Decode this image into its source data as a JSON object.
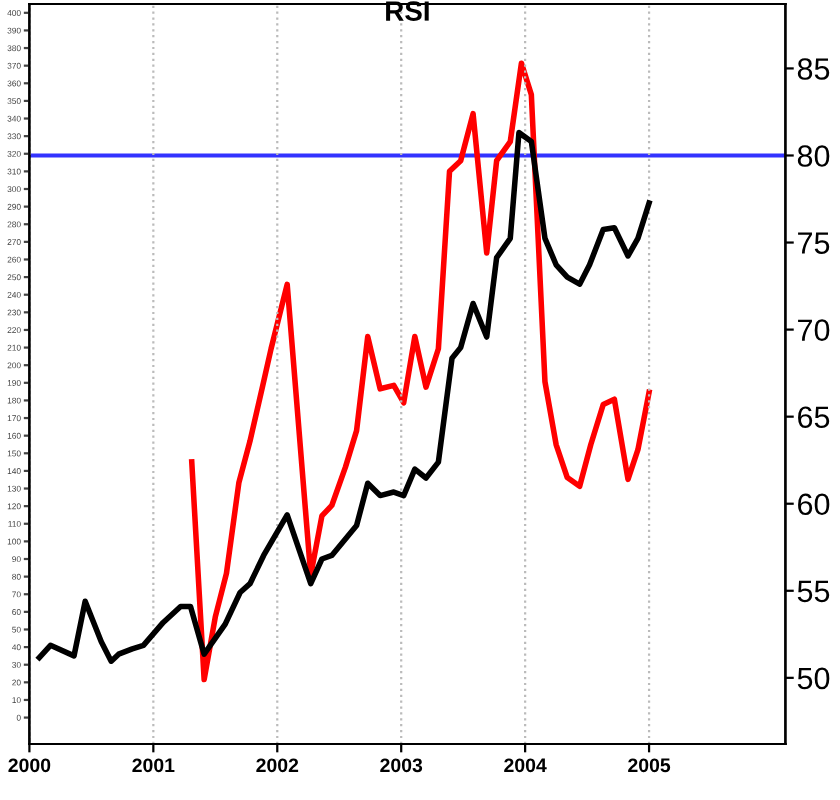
{
  "chart_data": {
    "type": "line",
    "title": "RSI",
    "xlim": [
      2000,
      2006.1
    ],
    "xticks": [
      2000,
      2001,
      2002,
      2003,
      2004,
      2005
    ],
    "ylim": [
      -15,
      405
    ],
    "yticks": [
      0,
      10,
      20,
      30,
      40,
      50,
      60,
      70,
      80,
      90,
      100,
      110,
      120,
      130,
      140,
      150,
      160,
      170,
      180,
      190,
      200,
      210,
      220,
      230,
      240,
      250,
      260,
      270,
      280,
      290,
      300,
      310,
      320,
      330,
      340,
      350,
      360,
      370,
      380,
      390,
      400
    ],
    "y2lim": [
      46.2,
      88.7
    ],
    "y2ticks": [
      50,
      55,
      60,
      65,
      70,
      75,
      80,
      85
    ],
    "grid": "x",
    "marker": "none",
    "line_style": "solid",
    "series": [
      {
        "color": "#000000",
        "axis": "y",
        "x": [
          2000.08,
          2000.17,
          2000.36,
          2000.45,
          2000.58,
          2000.66,
          2000.72,
          2000.83,
          2000.92,
          2001.08,
          2001.22,
          2001.3,
          2001.41,
          2001.58,
          2001.7,
          2001.78,
          2001.89,
          2002.08,
          2002.27,
          2002.36,
          2002.44,
          2002.64,
          2002.73,
          2002.83,
          2002.94,
          2003.02,
          2003.11,
          2003.2,
          2003.3,
          2003.41,
          2003.48,
          2003.58,
          2003.69,
          2003.77,
          2003.88,
          2003.95,
          2004.05,
          2004.16,
          2004.25,
          2004.34,
          2004.44,
          2004.52,
          2004.63,
          2004.72,
          2004.83,
          2004.91,
          2005.0
        ],
        "values": [
          34,
          41,
          35,
          66,
          43,
          32,
          36,
          39,
          41,
          54,
          63,
          63,
          36,
          53,
          71,
          76,
          92,
          115,
          76,
          90,
          92,
          109,
          133,
          126,
          128,
          126,
          141,
          136,
          145,
          204,
          210,
          235,
          216,
          261,
          272,
          332,
          327,
          272,
          257,
          250,
          246,
          257,
          277,
          278,
          262,
          272,
          292
        ]
      },
      {
        "color": "#ff0000",
        "axis": "y2",
        "x": [
          2001.31,
          2001.41,
          2001.5,
          2001.59,
          2001.69,
          2001.78,
          2001.88,
          2001.95,
          2002.08,
          2002.27,
          2002.36,
          2002.44,
          2002.55,
          2002.64,
          2002.73,
          2002.83,
          2002.94,
          2003.02,
          2003.11,
          2003.2,
          2003.3,
          2003.39,
          2003.48,
          2003.58,
          2003.69,
          2003.77,
          2003.88,
          2003.97,
          2004.05,
          2004.16,
          2004.25,
          2004.34,
          2004.44,
          2004.53,
          2004.63,
          2004.72,
          2004.83,
          2004.91,
          2005.0
        ],
        "values": [
          62.4,
          49.9,
          53.5,
          56.0,
          61.2,
          63.6,
          66.7,
          68.9,
          72.6,
          55.9,
          59.3,
          59.9,
          62.1,
          64.2,
          69.6,
          66.6,
          66.8,
          65.8,
          69.6,
          66.7,
          68.9,
          79.1,
          79.7,
          82.4,
          74.4,
          79.7,
          80.8,
          85.3,
          83.5,
          67.0,
          63.4,
          61.5,
          61.0,
          63.4,
          65.7,
          66.0,
          61.4,
          63.1,
          66.4
        ]
      }
    ],
    "ref_lines": [
      {
        "axis": "y2",
        "value": 80,
        "color": "#3333ff",
        "line_style": "solid"
      }
    ]
  }
}
